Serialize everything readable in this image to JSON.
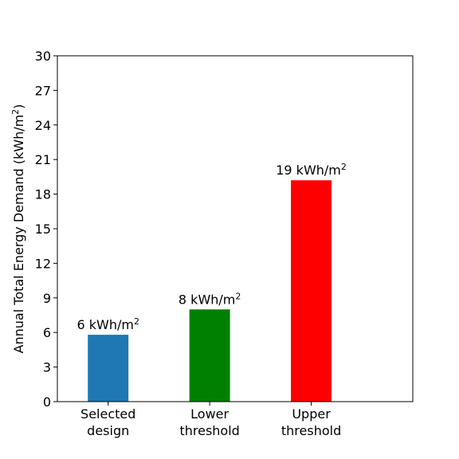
{
  "chart_data": {
    "type": "bar",
    "categories": [
      {
        "line1": "Selected",
        "line2": "design"
      },
      {
        "line1": "Lower",
        "line2": "threshold"
      },
      {
        "line1": "Upper",
        "line2": "threshold"
      }
    ],
    "values": [
      5.8,
      8.0,
      19.2
    ],
    "data_labels": [
      {
        "main": "6 kWh/m",
        "sup": "2"
      },
      {
        "main": "8 kWh/m",
        "sup": "2"
      },
      {
        "main": "19 kWh/m",
        "sup": "2"
      }
    ],
    "colors": [
      "#1f77b4",
      "#008000",
      "#ff0000"
    ],
    "title": "",
    "xlabel": "",
    "ylabel": {
      "main": "Annual Total Energy Demand (kWh/m",
      "sup": "2",
      "end": ")"
    },
    "ylim": [
      0,
      30
    ],
    "yticks": [
      0,
      3,
      6,
      9,
      12,
      15,
      18,
      21,
      24,
      27,
      30
    ],
    "grid": false
  }
}
